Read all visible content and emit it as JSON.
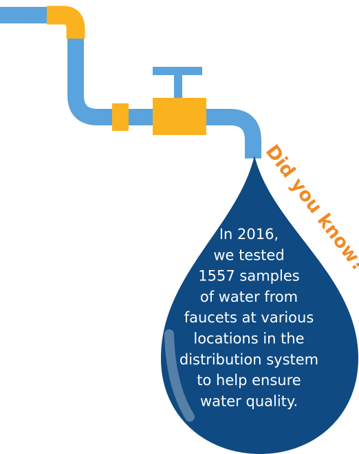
{
  "heading": "Did you know?",
  "body": {
    "lines": [
      "In 2016,",
      "we tested",
      "1557 samples",
      "of water from",
      "faucets at various",
      "locations in the",
      "distribution system",
      "to help ensure",
      "water quality."
    ]
  }
}
